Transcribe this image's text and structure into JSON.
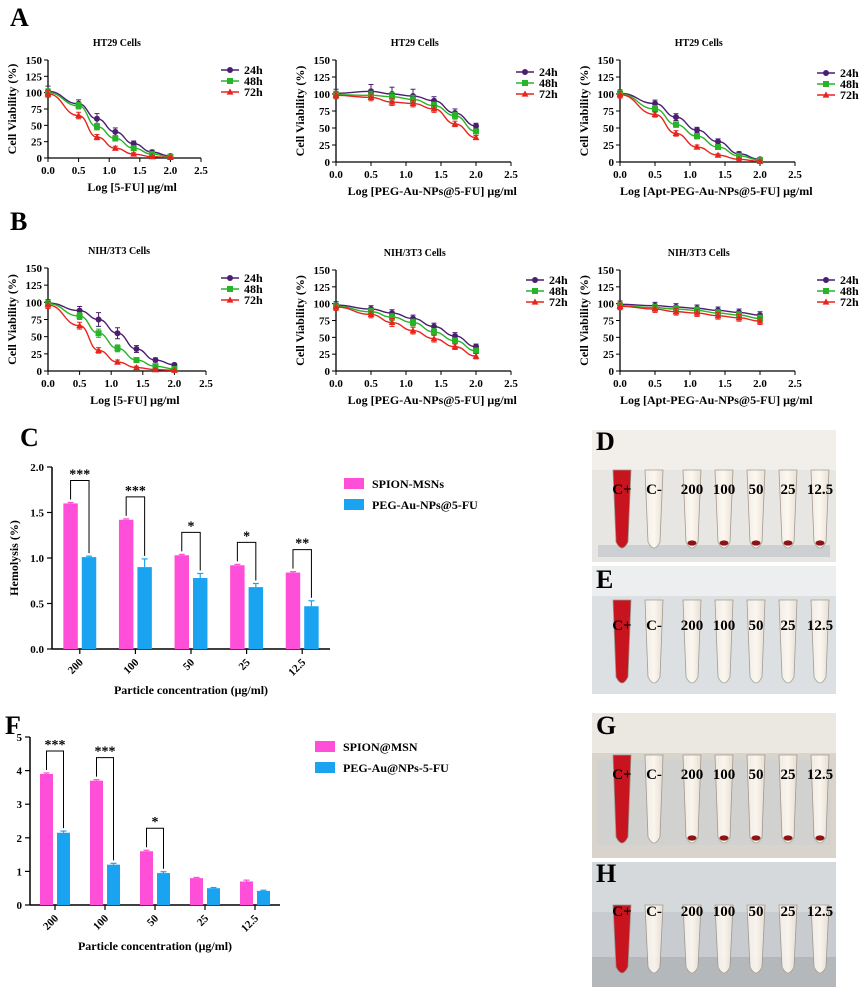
{
  "panel_letters": {
    "A": "A",
    "B": "B",
    "C": "C",
    "D": "D",
    "E": "E",
    "F": "F",
    "G": "G",
    "H": "H"
  },
  "colors": {
    "c24": "#4b1f6f",
    "c48": "#28b428",
    "c72": "#e8241e",
    "pink": "#ff4fd8",
    "blue": "#1aa3f0"
  },
  "chart_data": [
    {
      "id": "A1",
      "type": "line",
      "title": "HT29 Cells",
      "xlabel": "Log [5-FU] μg/ml",
      "ylabel": "Cell Viability (%)",
      "xlim": [
        0,
        2.5
      ],
      "ylim": [
        0,
        150
      ],
      "xticks": [
        "0.0",
        "0.5",
        "1.0",
        "1.5",
        "2.0",
        "2.5"
      ],
      "yticks": [
        "0",
        "25",
        "50",
        "75",
        "100",
        "125",
        "150"
      ],
      "x": [
        0,
        0.5,
        0.8,
        1.1,
        1.4,
        1.7,
        2.0
      ],
      "series": [
        {
          "name": "24h",
          "color": "#4b1f6f",
          "marker": "circle",
          "values": [
            102,
            83,
            60,
            40,
            22,
            9,
            3
          ],
          "err": [
            8,
            6,
            8,
            6,
            4,
            3,
            2
          ]
        },
        {
          "name": "48h",
          "color": "#28b428",
          "marker": "square",
          "values": [
            100,
            80,
            48,
            30,
            15,
            6,
            2
          ],
          "err": [
            6,
            5,
            5,
            4,
            3,
            2,
            1
          ]
        },
        {
          "name": "72h",
          "color": "#e8241e",
          "marker": "triangle",
          "values": [
            98,
            65,
            32,
            15,
            6,
            2,
            1
          ],
          "err": [
            5,
            5,
            4,
            3,
            2,
            1,
            1
          ]
        }
      ]
    },
    {
      "id": "A2",
      "type": "line",
      "title": "HT29 Cells",
      "xlabel": "Log [PEG-Au-NPs@5-FU] μg/ml",
      "ylabel": "Cell Viability (%)",
      "xlim": [
        0,
        2.5
      ],
      "ylim": [
        0,
        150
      ],
      "xticks": [
        "0.0",
        "0.5",
        "1.0",
        "1.5",
        "2.0",
        "2.5"
      ],
      "yticks": [
        "0",
        "25",
        "50",
        "75",
        "100",
        "125",
        "150"
      ],
      "x": [
        0,
        0.5,
        0.8,
        1.1,
        1.4,
        1.7,
        2.0
      ],
      "series": [
        {
          "name": "24h",
          "color": "#4b1f6f",
          "marker": "circle",
          "values": [
            101,
            104,
            100,
            97,
            90,
            72,
            53
          ],
          "err": [
            6,
            10,
            10,
            10,
            6,
            6,
            4
          ]
        },
        {
          "name": "48h",
          "color": "#28b428",
          "marker": "square",
          "values": [
            99,
            98,
            96,
            92,
            83,
            68,
            45
          ],
          "err": [
            5,
            6,
            6,
            6,
            5,
            5,
            3
          ]
        },
        {
          "name": "72h",
          "color": "#e8241e",
          "marker": "triangle",
          "values": [
            98,
            95,
            88,
            86,
            78,
            56,
            36
          ],
          "err": [
            5,
            5,
            5,
            5,
            5,
            4,
            3
          ]
        }
      ]
    },
    {
      "id": "A3",
      "type": "line",
      "title": "HT29 Cells",
      "xlabel": "Log [Apt-PEG-Au-NPs@5-FU] μg/ml",
      "ylabel": "Cell Viability (%)",
      "xlim": [
        0,
        2.5
      ],
      "ylim": [
        0,
        150
      ],
      "xticks": [
        "0.0",
        "0.5",
        "1.0",
        "1.5",
        "2.0",
        "2.5"
      ],
      "yticks": [
        "0",
        "25",
        "50",
        "75",
        "100",
        "125",
        "150"
      ],
      "x": [
        0,
        0.5,
        0.8,
        1.1,
        1.4,
        1.7,
        2.0
      ],
      "series": [
        {
          "name": "24h",
          "color": "#4b1f6f",
          "marker": "circle",
          "values": [
            101,
            86,
            66,
            47,
            30,
            12,
            4
          ],
          "err": [
            5,
            5,
            5,
            4,
            4,
            3,
            2
          ]
        },
        {
          "name": "48h",
          "color": "#28b428",
          "marker": "square",
          "values": [
            100,
            78,
            55,
            38,
            22,
            9,
            3
          ],
          "err": [
            5,
            5,
            4,
            4,
            3,
            2,
            1
          ]
        },
        {
          "name": "72h",
          "color": "#e8241e",
          "marker": "triangle",
          "values": [
            99,
            70,
            42,
            22,
            10,
            4,
            1
          ],
          "err": [
            5,
            4,
            4,
            3,
            2,
            1,
            1
          ]
        }
      ]
    },
    {
      "id": "B1",
      "type": "line",
      "title": "NIH/3T3 Cells",
      "xlabel": "Log [5-FU] μg/ml",
      "ylabel": "Cell Viability (%)",
      "xlim": [
        0,
        2.5
      ],
      "ylim": [
        0,
        150
      ],
      "xticks": [
        "0.0",
        "0.5",
        "1.0",
        "1.5",
        "2.0",
        "2.5"
      ],
      "yticks": [
        "0",
        "25",
        "50",
        "75",
        "100",
        "125",
        "150"
      ],
      "x": [
        0,
        0.5,
        0.8,
        1.1,
        1.4,
        1.7,
        2.0
      ],
      "series": [
        {
          "name": "24h",
          "color": "#4b1f6f",
          "marker": "circle",
          "values": [
            99,
            88,
            75,
            55,
            32,
            16,
            9
          ],
          "err": [
            5,
            6,
            10,
            8,
            5,
            3,
            2
          ]
        },
        {
          "name": "48h",
          "color": "#28b428",
          "marker": "square",
          "values": [
            98,
            80,
            55,
            33,
            16,
            7,
            3
          ],
          "err": [
            5,
            5,
            6,
            5,
            3,
            2,
            1
          ]
        },
        {
          "name": "72h",
          "color": "#e8241e",
          "marker": "triangle",
          "values": [
            96,
            66,
            30,
            13,
            5,
            2,
            1
          ],
          "err": [
            5,
            5,
            4,
            3,
            2,
            1,
            1
          ]
        }
      ]
    },
    {
      "id": "B2",
      "type": "line",
      "title": "NIH/3T3 Cells",
      "xlabel": "Log [PEG-Au-NPs@5-FU] μg/ml",
      "ylabel": "Cell Viability (%)",
      "xlim": [
        0,
        2.5
      ],
      "ylim": [
        0,
        150
      ],
      "xticks": [
        "0.0",
        "0.5",
        "1.0",
        "1.5",
        "2.0",
        "2.5"
      ],
      "yticks": [
        "0",
        "25",
        "50",
        "75",
        "100",
        "125",
        "150"
      ],
      "x": [
        0,
        0.5,
        0.8,
        1.1,
        1.4,
        1.7,
        2.0
      ],
      "series": [
        {
          "name": "24h",
          "color": "#4b1f6f",
          "marker": "circle",
          "values": [
            98,
            92,
            86,
            78,
            66,
            52,
            36
          ],
          "err": [
            5,
            5,
            5,
            5,
            5,
            5,
            4
          ]
        },
        {
          "name": "48h",
          "color": "#28b428",
          "marker": "square",
          "values": [
            96,
            88,
            80,
            72,
            58,
            45,
            30
          ],
          "err": [
            5,
            5,
            5,
            5,
            5,
            4,
            4
          ]
        },
        {
          "name": "72h",
          "color": "#e8241e",
          "marker": "triangle",
          "values": [
            95,
            84,
            72,
            60,
            48,
            36,
            22
          ],
          "err": [
            5,
            5,
            6,
            5,
            5,
            4,
            4
          ]
        }
      ]
    },
    {
      "id": "B3",
      "type": "line",
      "title": "NIH/3T3 Cells",
      "xlabel": "Log [Apt-PEG-Au-NPs@5-FU] μg/ml",
      "ylabel": "Cell Viability (%)",
      "xlim": [
        0,
        2.5
      ],
      "ylim": [
        0,
        150
      ],
      "xticks": [
        "0.0",
        "0.5",
        "1.0",
        "1.5",
        "2.0",
        "2.5"
      ],
      "yticks": [
        "0",
        "25",
        "50",
        "75",
        "100",
        "125",
        "150"
      ],
      "x": [
        0,
        0.5,
        0.8,
        1.1,
        1.4,
        1.7,
        2.0
      ],
      "series": [
        {
          "name": "24h",
          "color": "#4b1f6f",
          "marker": "circle",
          "values": [
            99,
            97,
            95,
            93,
            90,
            87,
            83
          ],
          "err": [
            5,
            5,
            5,
            5,
            5,
            5,
            5
          ]
        },
        {
          "name": "48h",
          "color": "#28b428",
          "marker": "square",
          "values": [
            97,
            94,
            92,
            90,
            86,
            83,
            78
          ],
          "err": [
            5,
            5,
            5,
            5,
            5,
            5,
            5
          ]
        },
        {
          "name": "72h",
          "color": "#e8241e",
          "marker": "triangle",
          "values": [
            96,
            92,
            88,
            86,
            82,
            79,
            74
          ],
          "err": [
            5,
            5,
            5,
            5,
            5,
            5,
            5
          ]
        }
      ]
    },
    {
      "id": "C",
      "type": "bar",
      "xlabel": "Particle concentration (μg/ml)",
      "ylabel": "Hemolysis (%)",
      "ylim": [
        0,
        2.0
      ],
      "yticks": [
        "0.0",
        "0.5",
        "1.0",
        "1.5",
        "2.0"
      ],
      "categories": [
        "200",
        "100",
        "50",
        "25",
        "12.5"
      ],
      "series": [
        {
          "name": "SPION-MSNs",
          "color": "#ff4fd8",
          "values": [
            1.6,
            1.42,
            1.03,
            0.92,
            0.84
          ],
          "err": [
            0.01,
            0.01,
            0.01,
            0.01,
            0.01
          ]
        },
        {
          "name": "PEG-Au-NPs@5-FU",
          "color": "#1aa3f0",
          "values": [
            1.01,
            0.9,
            0.78,
            0.68,
            0.47
          ],
          "err": [
            0.01,
            0.09,
            0.05,
            0.04,
            0.06
          ]
        }
      ],
      "significance": [
        "***",
        "***",
        "*",
        "*",
        "**"
      ]
    },
    {
      "id": "F",
      "type": "bar",
      "xlabel": "Particle concentration (μg/ml)",
      "ylabel": "Hemolysis (%)",
      "ylim": [
        0,
        5
      ],
      "yticks": [
        "0",
        "1",
        "2",
        "3",
        "4",
        "5"
      ],
      "categories": [
        "200",
        "100",
        "50",
        "25",
        "12.5"
      ],
      "series": [
        {
          "name": "SPION@MSN",
          "color": "#ff4fd8",
          "values": [
            3.9,
            3.7,
            1.6,
            0.8,
            0.7
          ],
          "err": [
            0.03,
            0.03,
            0.03,
            0.02,
            0.04
          ]
        },
        {
          "name": "PEG-Au@NPs-5-FU",
          "color": "#1aa3f0",
          "values": [
            2.15,
            1.2,
            0.95,
            0.5,
            0.42
          ],
          "err": [
            0.05,
            0.04,
            0.04,
            0.02,
            0.02
          ]
        }
      ],
      "significance": [
        "***",
        "***",
        "*",
        "",
        ""
      ]
    }
  ],
  "photos": {
    "D": [
      "C+",
      "C-",
      "200",
      "100",
      "50",
      "25",
      "12.5"
    ],
    "E": [
      "C+",
      "C-",
      "200",
      "100",
      "50",
      "25",
      "12.5"
    ],
    "G": [
      "C+",
      "C-",
      "200",
      "100",
      "50",
      "25",
      "12.5"
    ],
    "H": [
      "C+",
      "C-",
      "200",
      "100",
      "50",
      "25",
      "12.5"
    ]
  }
}
